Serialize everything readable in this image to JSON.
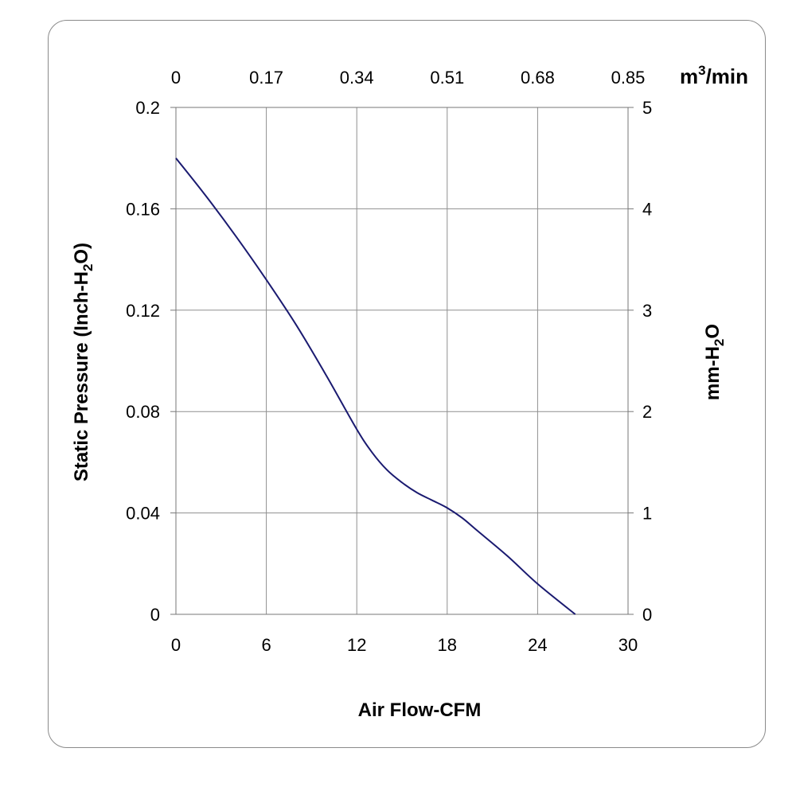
{
  "chart_data": {
    "type": "line",
    "xlabel": "Air Flow-CFM",
    "ylabel": {
      "pre": "Static Pressure (Inch-H",
      "sub": "2",
      "post": "O)"
    },
    "y2label": {
      "pre": "mm-H",
      "sub": "2",
      "post": "O"
    },
    "x2label": {
      "pre": "m",
      "sup": "3",
      "post": "/min"
    },
    "xlim": [
      0,
      30
    ],
    "ylim": [
      0,
      0.2
    ],
    "x_ticks": [
      "0",
      "6",
      "12",
      "18",
      "24",
      "30"
    ],
    "y_ticks": [
      "0",
      "0.04",
      "0.08",
      "0.12",
      "0.16",
      "0.2"
    ],
    "x2_ticks": [
      "0",
      "0.17",
      "0.34",
      "0.51",
      "0.68",
      "0.85"
    ],
    "y2_ticks": [
      "0",
      "1",
      "2",
      "3",
      "4",
      "5"
    ],
    "grid": true,
    "line_color": "#1a1a70",
    "series": [
      {
        "x": [
          0,
          2,
          4,
          6,
          8,
          10,
          12,
          13,
          14,
          15,
          16,
          17,
          18,
          19,
          20,
          22,
          24,
          26.5
        ],
        "y": [
          0.18,
          0.165,
          0.149,
          0.132,
          0.114,
          0.094,
          0.073,
          0.064,
          0.057,
          0.052,
          0.048,
          0.045,
          0.042,
          0.038,
          0.033,
          0.023,
          0.012,
          0.0
        ]
      }
    ]
  }
}
